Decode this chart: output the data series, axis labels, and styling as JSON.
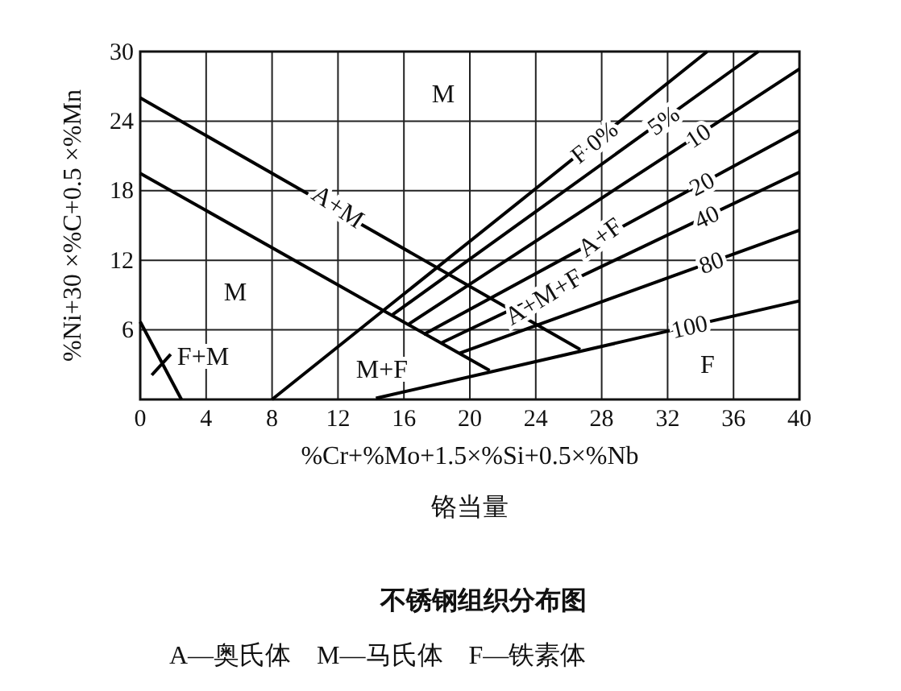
{
  "chart_data": {
    "type": "line",
    "title": "不锈钢组织分布图",
    "xlabel": "%Cr+%Mo+1.5×%Si+0.5×%Nb\n铬当量",
    "ylabel": "%Ni+30 ×%C+0.5 ×%Mn",
    "xlim": [
      0,
      40
    ],
    "ylim": [
      0,
      30
    ],
    "xticks": [
      0,
      4,
      8,
      12,
      16,
      20,
      24,
      28,
      32,
      36,
      40
    ],
    "yticks": [
      6,
      12,
      18,
      24,
      30
    ],
    "grid": true,
    "marker": "none",
    "line_style": "solid",
    "series": [
      {
        "color": "#000000",
        "x": [
          0,
          26.7
        ],
        "values": [
          26,
          4.3
        ]
      },
      {
        "color": "#000000",
        "x": [
          0,
          21.2
        ],
        "values": [
          19.5,
          2.5
        ]
      },
      {
        "color": "#000000",
        "x": [
          0,
          2.5
        ],
        "values": [
          6.7,
          0
        ]
      },
      {
        "color": "#000000",
        "x": [
          0.7,
          1.85
        ],
        "values": [
          2.1,
          3.9
        ]
      },
      {
        "name": "F 0%",
        "color": "#000000",
        "x": [
          8,
          34.4
        ],
        "values": [
          0,
          30
        ]
      },
      {
        "name": "5%",
        "color": "#000000",
        "x": [
          15.3,
          37.5
        ],
        "values": [
          7.3,
          30
        ]
      },
      {
        "name": "10",
        "color": "#000000",
        "x": [
          16.3,
          40
        ],
        "values": [
          6.5,
          28.5
        ]
      },
      {
        "name": "20",
        "color": "#000000",
        "x": [
          17.2,
          40
        ],
        "values": [
          5.6,
          23.2
        ]
      },
      {
        "name": "40",
        "color": "#000000",
        "x": [
          18.3,
          40
        ],
        "values": [
          4.9,
          19.6
        ]
      },
      {
        "name": "80",
        "color": "#000000",
        "x": [
          19.4,
          40
        ],
        "values": [
          4.0,
          14.6
        ]
      },
      {
        "name": "100",
        "color": "#000000",
        "x": [
          14.3,
          40
        ],
        "values": [
          0.1,
          8.5
        ]
      }
    ],
    "annotations": [
      "M",
      "A+M",
      "M",
      "F+M",
      "M+F",
      "A+F",
      "A+M+F",
      "F",
      "A—奥氏体    M—马氏体    F—铁素体"
    ]
  }
}
